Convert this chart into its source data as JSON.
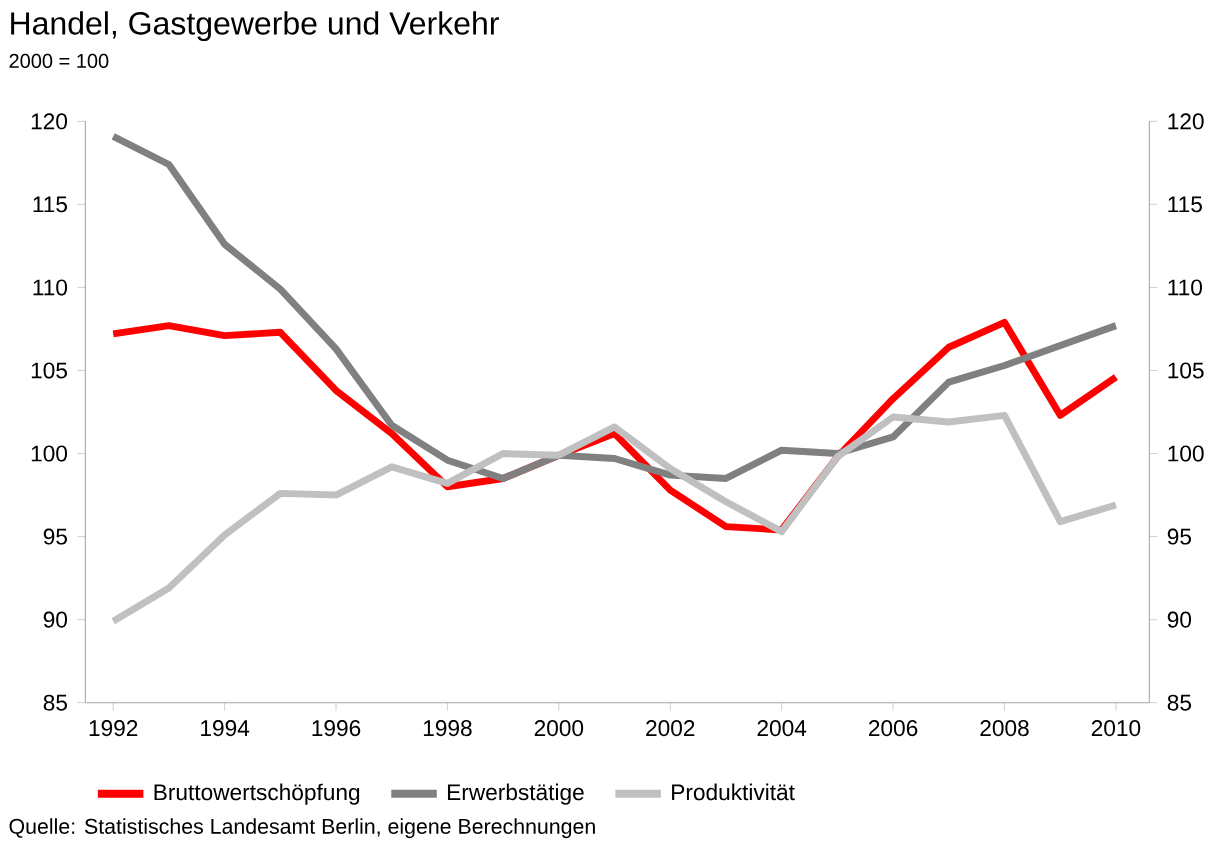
{
  "chart_data": {
    "type": "line",
    "title": "Handel, Gastgewerbe und Verkehr",
    "subtitle": "2000 = 100",
    "x": [
      1992,
      1993,
      1994,
      1995,
      1996,
      1997,
      1998,
      1999,
      2000,
      2001,
      2002,
      2003,
      2004,
      2005,
      2006,
      2007,
      2008,
      2009,
      2010
    ],
    "series": [
      {
        "name": "Bruttowertschöpfung",
        "color": "#ff0000",
        "values": [
          107.2,
          107.7,
          107.1,
          107.3,
          103.8,
          101.2,
          98.0,
          98.5,
          99.9,
          101.2,
          97.8,
          95.6,
          95.4,
          99.8,
          103.3,
          106.4,
          107.9,
          102.3,
          104.6
        ]
      },
      {
        "name": "Erwerbstätige",
        "color": "#808080",
        "values": [
          119.1,
          117.4,
          112.6,
          109.9,
          106.3,
          101.7,
          99.6,
          98.5,
          99.9,
          99.7,
          98.7,
          98.5,
          100.2,
          100.0,
          101.0,
          104.3,
          105.3,
          106.5,
          107.7
        ]
      },
      {
        "name": "Produktivität",
        "color": "#c0c0c0",
        "values": [
          89.9,
          91.9,
          95.1,
          97.6,
          97.5,
          99.2,
          98.2,
          100.0,
          99.9,
          101.6,
          99.1,
          97.1,
          95.3,
          99.8,
          102.2,
          101.9,
          102.3,
          95.9,
          96.9
        ]
      }
    ],
    "xlim": [
      1991.5,
      2010.6
    ],
    "xticks": [
      1992,
      1994,
      1996,
      1998,
      2000,
      2002,
      2004,
      2006,
      2008,
      2010
    ],
    "ylim": [
      85,
      120
    ],
    "yticks": [
      85,
      90,
      95,
      100,
      105,
      110,
      115,
      120
    ],
    "y2lim": [
      85,
      120
    ],
    "y2ticks": [
      85,
      90,
      95,
      100,
      105,
      110,
      115,
      120
    ],
    "legend": "bottom",
    "annotations": [
      "Quelle: Statistisches Landesamt Berlin, eigene Berechnungen"
    ]
  }
}
